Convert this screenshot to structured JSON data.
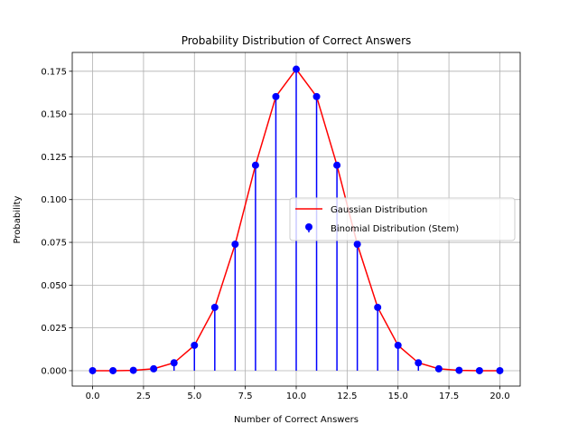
{
  "chart_data": {
    "type": "line",
    "title": "Probability Distribution of Correct Answers",
    "xlabel": "Number of Correct Answers",
    "ylabel": "Probability",
    "xlim": [
      -1,
      21
    ],
    "ylim": [
      -0.009,
      0.186
    ],
    "x_ticks": [
      0,
      2.5,
      5,
      7.5,
      10,
      12.5,
      15,
      17.5,
      20
    ],
    "x_tick_labels": [
      "0.0",
      "2.5",
      "5.0",
      "7.5",
      "10.0",
      "12.5",
      "15.0",
      "17.5",
      "20.0"
    ],
    "y_ticks": [
      0,
      0.025,
      0.05,
      0.075,
      0.1,
      0.125,
      0.15,
      0.175
    ],
    "y_tick_labels": [
      "0.000",
      "0.025",
      "0.050",
      "0.075",
      "0.100",
      "0.125",
      "0.150",
      "0.175"
    ],
    "grid": true,
    "legend_position": "center-right",
    "x": [
      0,
      1,
      2,
      3,
      4,
      5,
      6,
      7,
      8,
      9,
      10,
      11,
      12,
      13,
      14,
      15,
      16,
      17,
      18,
      19,
      20
    ],
    "series": [
      {
        "name": "Gaussian Distribution",
        "kind": "line",
        "color": "#ff0000",
        "values": [
          0.0,
          0.0,
          0.0002,
          0.0011,
          0.0046,
          0.0148,
          0.037,
          0.0739,
          0.1201,
          0.1602,
          0.1762,
          0.1602,
          0.1201,
          0.0739,
          0.037,
          0.0148,
          0.0046,
          0.0011,
          0.0002,
          0.0,
          0.0
        ]
      },
      {
        "name": "Binomial Distribution (Stem)",
        "kind": "stem",
        "color": "#0000ff",
        "values": [
          0.0,
          0.0,
          0.0002,
          0.0011,
          0.0046,
          0.0148,
          0.037,
          0.0739,
          0.1201,
          0.1602,
          0.1762,
          0.1602,
          0.1201,
          0.0739,
          0.037,
          0.0148,
          0.0046,
          0.0011,
          0.0002,
          0.0,
          0.0
        ]
      }
    ]
  }
}
